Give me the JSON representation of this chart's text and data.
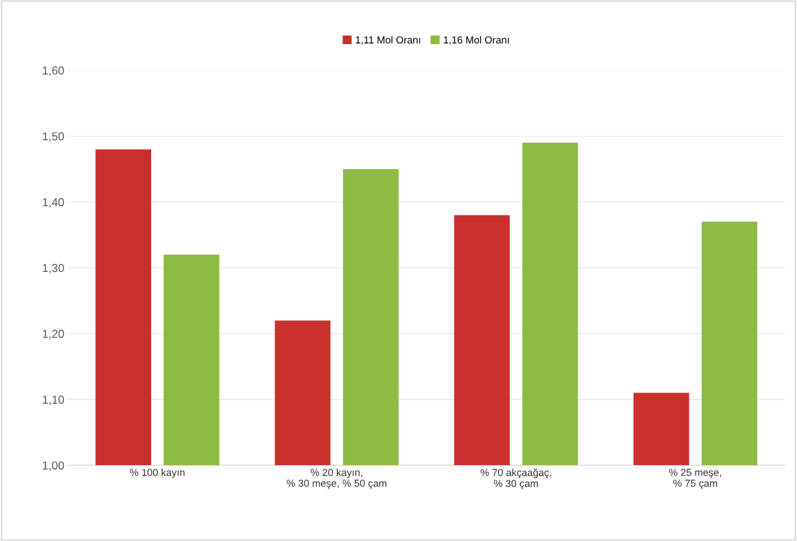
{
  "chart_data": {
    "type": "bar",
    "categories": [
      "% 100 kayın",
      "% 20 kayın,\n% 30 meşe, % 50 çam",
      "% 70 akçaağaç,\n% 30 çam",
      "% 25 meşe,\n% 75 çam"
    ],
    "series": [
      {
        "name": "1,11 Mol Oranı",
        "color": "#c9302c",
        "values": [
          1.48,
          1.22,
          1.38,
          1.11
        ]
      },
      {
        "name": "1,16 Mol Oranı",
        "color": "#8dba42",
        "values": [
          1.32,
          1.45,
          1.49,
          1.37
        ]
      }
    ],
    "ylim": [
      1.0,
      1.6
    ],
    "yticks": [
      {
        "value": 1.0,
        "label": "1,00"
      },
      {
        "value": 1.1,
        "label": "1,10"
      },
      {
        "value": 1.2,
        "label": "1,20"
      },
      {
        "value": 1.3,
        "label": "1,30"
      },
      {
        "value": 1.4,
        "label": "1,40"
      },
      {
        "value": 1.5,
        "label": "1,50"
      },
      {
        "value": 1.6,
        "label": "1,60"
      }
    ],
    "grid": "y",
    "legend": "top"
  }
}
